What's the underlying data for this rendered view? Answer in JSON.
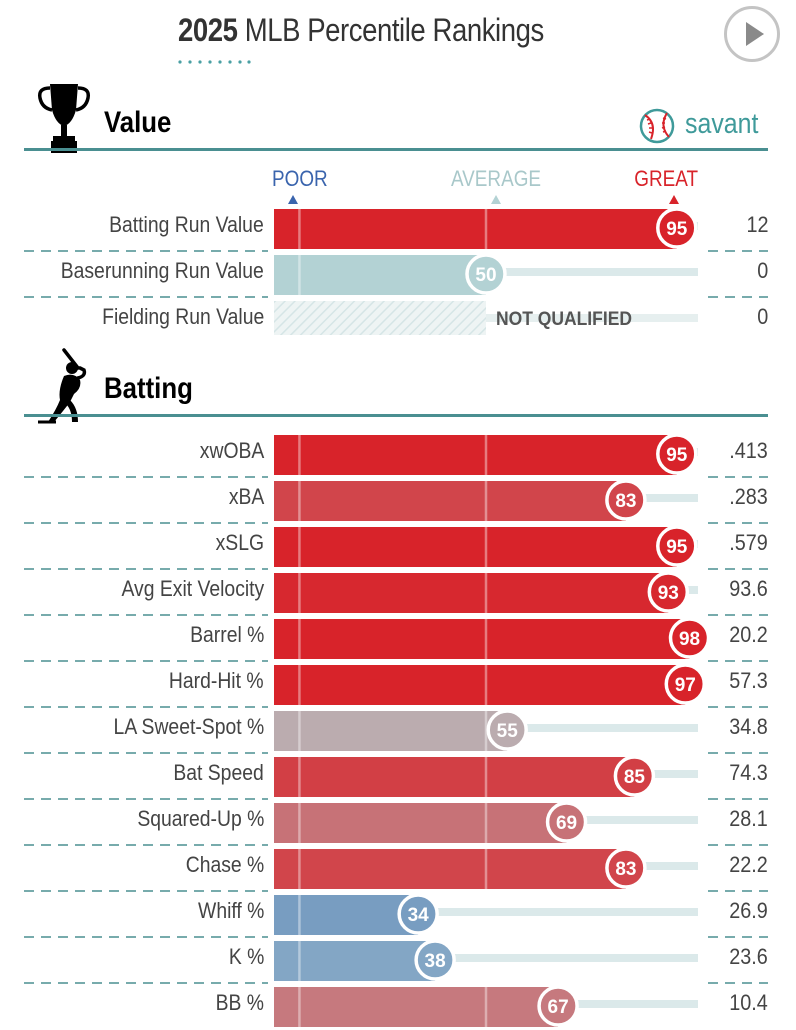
{
  "header": {
    "year": "2025",
    "title_rest": "MLB Percentile Rankings"
  },
  "sections": {
    "value": {
      "title": "Value"
    },
    "batting": {
      "title": "Batting"
    }
  },
  "brand": {
    "name": "savant"
  },
  "scale_labels": {
    "poor": "POOR",
    "average": "AVERAGE",
    "great": "GREAT"
  },
  "not_qualified_label": "NOT QUALIFIED",
  "icons": {
    "trophy": "trophy-icon",
    "batter": "batter-icon",
    "play": "play-icon",
    "savant": "baseball-logo-icon"
  },
  "colors": {
    "great": "#d8232a",
    "poor": "#3a64ad",
    "average": "#b3d2d4",
    "rule": "#4a8f91"
  },
  "chart_data": {
    "type": "bar",
    "title": "2025 MLB Percentile Rankings",
    "xlim": [
      0,
      100
    ],
    "orientation": "horizontal",
    "groups": [
      {
        "name": "Value",
        "rows": [
          {
            "label": "Batting Run Value",
            "percentile": 95,
            "value": "12",
            "qualified": true
          },
          {
            "label": "Baserunning Run Value",
            "percentile": 50,
            "value": "0",
            "qualified": true
          },
          {
            "label": "Fielding Run Value",
            "percentile": null,
            "value": "0",
            "qualified": false
          }
        ]
      },
      {
        "name": "Batting",
        "rows": [
          {
            "label": "xwOBA",
            "percentile": 95,
            "value": ".413",
            "qualified": true
          },
          {
            "label": "xBA",
            "percentile": 83,
            "value": ".283",
            "qualified": true
          },
          {
            "label": "xSLG",
            "percentile": 95,
            "value": ".579",
            "qualified": true
          },
          {
            "label": "Avg Exit Velocity",
            "percentile": 93,
            "value": "93.6",
            "qualified": true
          },
          {
            "label": "Barrel %",
            "percentile": 98,
            "value": "20.2",
            "qualified": true
          },
          {
            "label": "Hard-Hit %",
            "percentile": 97,
            "value": "57.3",
            "qualified": true
          },
          {
            "label": "LA Sweet-Spot %",
            "percentile": 55,
            "value": "34.8",
            "qualified": true
          },
          {
            "label": "Bat Speed",
            "percentile": 85,
            "value": "74.3",
            "qualified": true
          },
          {
            "label": "Squared-Up %",
            "percentile": 69,
            "value": "28.1",
            "qualified": true
          },
          {
            "label": "Chase %",
            "percentile": 83,
            "value": "22.2",
            "qualified": true
          },
          {
            "label": "Whiff %",
            "percentile": 34,
            "value": "26.9",
            "qualified": true
          },
          {
            "label": "K %",
            "percentile": 38,
            "value": "23.6",
            "qualified": true
          },
          {
            "label": "BB %",
            "percentile": 67,
            "value": "10.4",
            "qualified": true
          }
        ]
      }
    ]
  }
}
